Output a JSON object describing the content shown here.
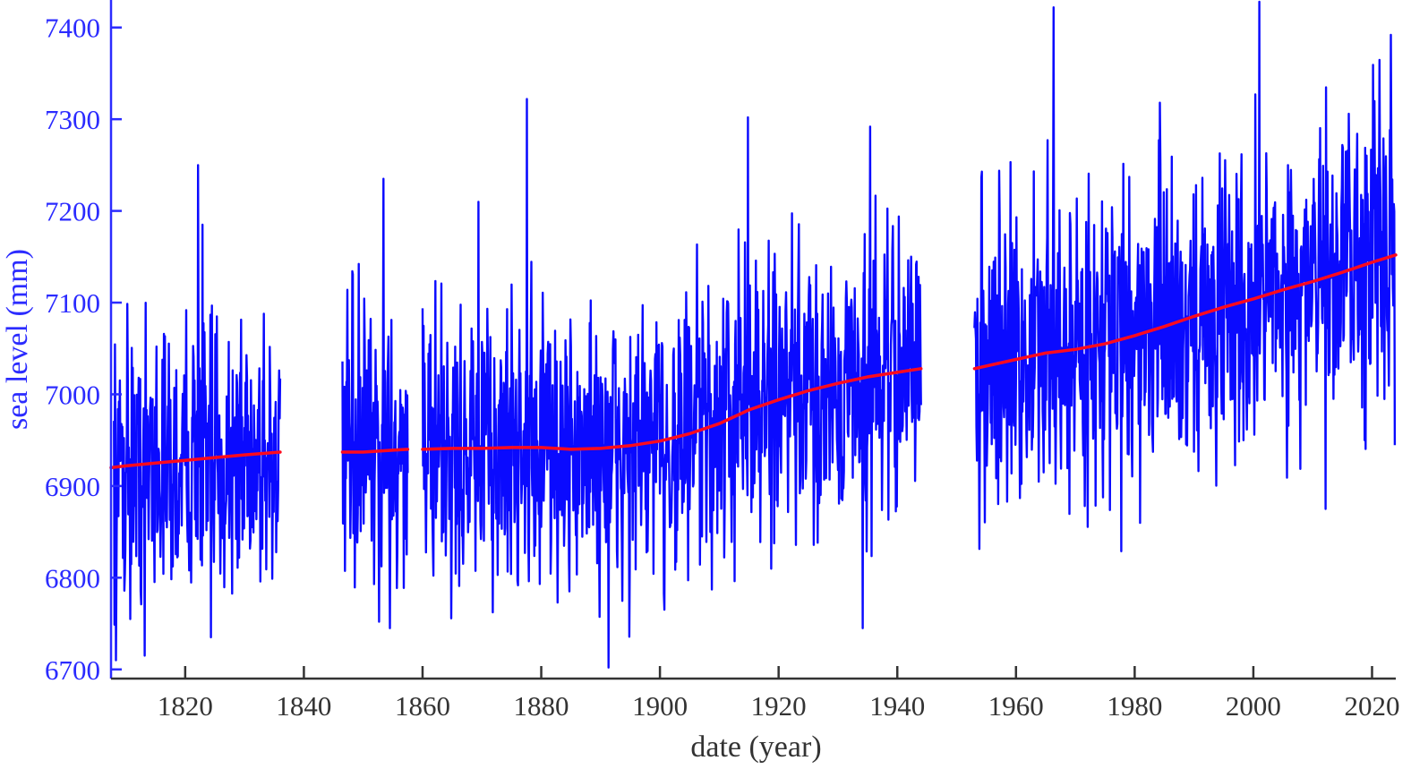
{
  "chart_data": {
    "type": "line",
    "title": "",
    "xlabel": "date (year)",
    "ylabel": "sea level (mm)",
    "xlim": [
      1807.5,
      2024
    ],
    "ylim": [
      6690,
      7430
    ],
    "x_ticks": [
      1820,
      1840,
      1860,
      1880,
      1900,
      1920,
      1940,
      1960,
      1980,
      2000,
      2020
    ],
    "y_ticks": [
      6700,
      6800,
      6900,
      7000,
      7100,
      7200,
      7300,
      7400
    ],
    "grid": false,
    "legend": "none",
    "colors": {
      "monthly": "#0a0aff",
      "trend": "#ff0a1e",
      "y_axis": "#2b2bff",
      "x_axis": "#333333"
    },
    "data_gaps": [
      [
        1836,
        1846.5
      ],
      [
        1857.5,
        1860
      ],
      [
        1944,
        1953
      ]
    ],
    "series": [
      {
        "role": "monthly sea level",
        "segments": [
          {
            "x": [
              1808,
              1810,
              1812,
              1814,
              1816,
              1818,
              1820,
              1822,
              1824,
              1826,
              1828,
              1830,
              1832,
              1834,
              1836
            ],
            "y": [
              6920,
              6930,
              6915,
              6935,
              6925,
              6910,
              6930,
              6945,
              6920,
              6925,
              6930,
              6940,
              6935,
              6930,
              6935
            ],
            "annual_range": 150,
            "extremes": [
              [
                1808.3,
                6710
              ],
              [
                1813.2,
                6715
              ],
              [
                1822.2,
                7250
              ],
              [
                1822.9,
                7185
              ],
              [
                1824.3,
                6735
              ]
            ]
          },
          {
            "x": [
              1846.5,
              1848,
              1850,
              1852,
              1854,
              1856,
              1857.5
            ],
            "y": [
              6935,
              6930,
              6945,
              6930,
              6950,
              6940,
              6940
            ],
            "annual_range": 150,
            "extremes": [
              [
                1852.7,
                6752
              ],
              [
                1853.4,
                7235
              ],
              [
                1854.5,
                6745
              ]
            ]
          },
          {
            "x": [
              1860,
              1865,
              1870,
              1875,
              1880,
              1885,
              1890,
              1895,
              1900,
              1905,
              1910,
              1915,
              1920,
              1925,
              1930,
              1935,
              1940,
              1944
            ],
            "y": [
              6945,
              6940,
              6930,
              6950,
              6945,
              6935,
              6940,
              6935,
              6945,
              6955,
              6965,
              6990,
              6990,
              7000,
              7010,
              7020,
              7025,
              7030
            ],
            "annual_range": 160,
            "extremes": [
              [
                1869.4,
                7210
              ],
              [
                1877.6,
                7322
              ],
              [
                1891.3,
                6702
              ],
              [
                1914.8,
                7302
              ],
              [
                1934.2,
                6745
              ],
              [
                1935.4,
                7292
              ]
            ]
          },
          {
            "x": [
              1953,
              1958,
              1963,
              1968,
              1973,
              1978,
              1983,
              1988,
              1993,
              1998,
              2003,
              2008,
              2013,
              2018,
              2023.8
            ],
            "y": [
              7030,
              7040,
              7045,
              7050,
              7055,
              7060,
              7075,
              7080,
              7090,
              7100,
              7110,
              7120,
              7135,
              7150,
              7165
            ],
            "annual_range": 170,
            "extremes": [
              [
                1966.3,
                7422
              ],
              [
                2001,
                7428
              ],
              [
                2012.2,
                6875
              ],
              [
                2023.2,
                7392
              ]
            ]
          }
        ]
      },
      {
        "role": "fitted trend",
        "segments": [
          {
            "x": [
              1807.5,
              1810,
              1815,
              1820,
              1825,
              1830,
              1836
            ],
            "y": [
              6920,
              6922,
              6925,
              6928,
              6931,
              6934,
              6937
            ]
          },
          {
            "x": [
              1846.5,
              1850,
              1855,
              1857.5
            ],
            "y": [
              6937,
              6937,
              6939,
              6940
            ]
          },
          {
            "x": [
              1860,
              1865,
              1870,
              1875,
              1880,
              1885,
              1890,
              1895,
              1900,
              1905,
              1910,
              1915,
              1920,
              1925,
              1930,
              1935,
              1940,
              1944
            ],
            "y": [
              6940,
              6941,
              6941,
              6942,
              6942,
              6940,
              6941,
              6944,
              6949,
              6957,
              6968,
              6983,
              6994,
              7004,
              7012,
              7019,
              7024,
              7028
            ]
          },
          {
            "x": [
              1953,
              1960,
              1965,
              1970,
              1975,
              1980,
              1985,
              1990,
              1995,
              2000,
              2005,
              2010,
              2015,
              2020,
              2024
            ],
            "y": [
              7028,
              7038,
              7045,
              7049,
              7055,
              7064,
              7074,
              7085,
              7095,
              7104,
              7114,
              7123,
              7133,
              7144,
              7152
            ]
          }
        ]
      }
    ]
  }
}
